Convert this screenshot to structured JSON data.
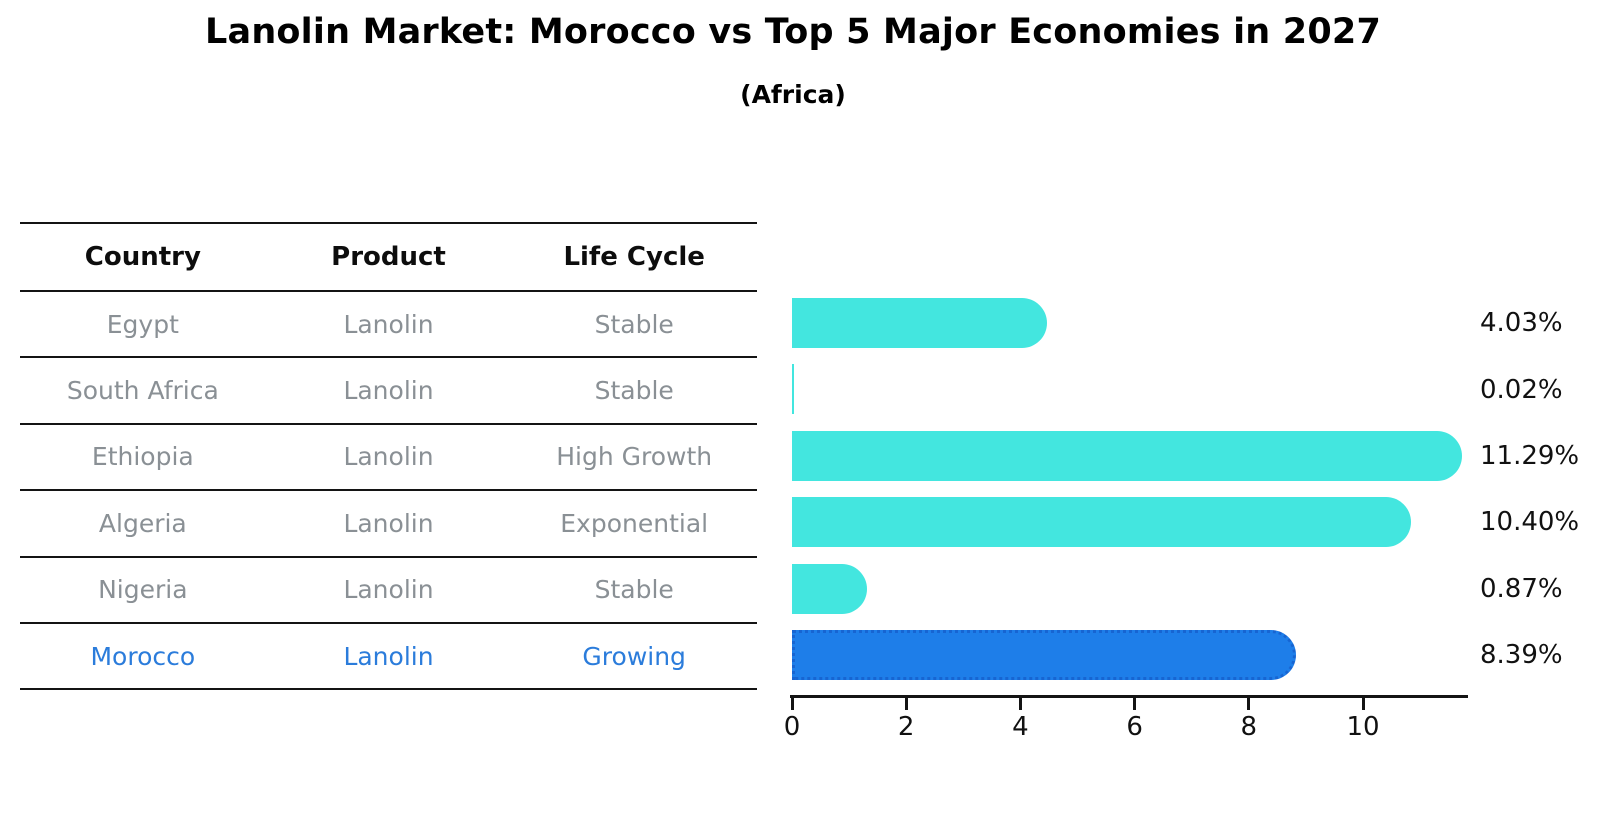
{
  "title": "Lanolin Market: Morocco vs Top 5 Major Economies in 2027",
  "subtitle": "(Africa)",
  "table": {
    "headers": [
      "Country",
      "Product",
      "Life Cycle"
    ],
    "rows": [
      {
        "country": "Egypt",
        "product": "Lanolin",
        "life_cycle": "Stable",
        "highlight": false
      },
      {
        "country": "South Africa",
        "product": "Lanolin",
        "life_cycle": "Stable",
        "highlight": false
      },
      {
        "country": "Ethiopia",
        "product": "Lanolin",
        "life_cycle": "High Growth",
        "highlight": false
      },
      {
        "country": "Algeria",
        "product": "Lanolin",
        "life_cycle": "Exponential",
        "highlight": false
      },
      {
        "country": "Nigeria",
        "product": "Lanolin",
        "life_cycle": "Stable",
        "highlight": false
      },
      {
        "country": "Morocco",
        "product": "Lanolin",
        "life_cycle": "Growing",
        "highlight": true
      }
    ]
  },
  "chart_data": {
    "type": "bar",
    "orientation": "horizontal",
    "title": "Lanolin Market: Morocco vs Top 5 Major Economies in 2027 (Africa)",
    "categories": [
      "Egypt",
      "South Africa",
      "Ethiopia",
      "Algeria",
      "Nigeria",
      "Morocco"
    ],
    "values": [
      4.03,
      0.02,
      11.29,
      10.4,
      0.87,
      8.39
    ],
    "value_labels": [
      "4.03%",
      "0.02%",
      "11.29%",
      "10.40%",
      "0.87%",
      "8.39%"
    ],
    "x_ticks": [
      0,
      2,
      4,
      6,
      8,
      10
    ],
    "xlim": [
      0,
      11.87
    ],
    "grid": false,
    "legend": "none",
    "highlight_index": 5,
    "highlight_category": "Morocco",
    "colors": {
      "default_bar": "#43E6DF",
      "highlight_bar": "#1E7EE9",
      "highlight_bar_edge": "#1765D2",
      "highlight_text": "#2B7CDB",
      "row_text": "#8A9095",
      "axis_line": "#141414"
    }
  }
}
